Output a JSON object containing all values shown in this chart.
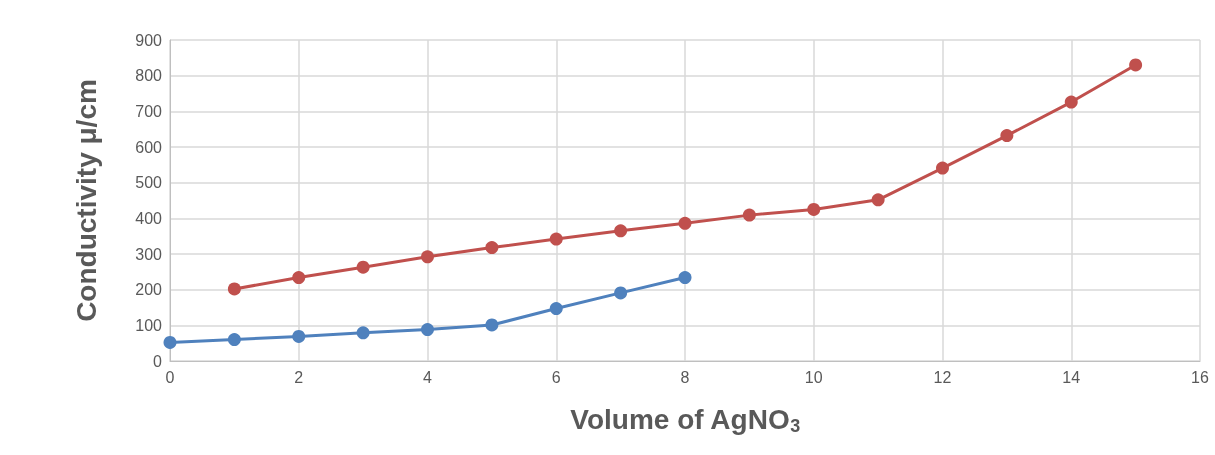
{
  "chart_data": {
    "type": "line",
    "xlabel": "Volume of AgNO$_{3}$",
    "ylabel": "Conductivity μ/cm",
    "xlim": [
      0,
      16
    ],
    "xticks": [
      0,
      2,
      4,
      6,
      8,
      10,
      12,
      14,
      16
    ],
    "ylim": [
      0,
      900
    ],
    "yticks": [
      0,
      100,
      200,
      300,
      400,
      500,
      600,
      700,
      800,
      900
    ],
    "grid": true,
    "marker": "circle",
    "line_style": "solid",
    "series": [
      {
        "color": "#4f81bd",
        "x": [
          0,
          1,
          2,
          3,
          4,
          5,
          6,
          7,
          8
        ],
        "values": [
          52,
          60,
          69,
          79,
          88,
          101,
          147,
          191,
          234
        ]
      },
      {
        "color": "#c0504d",
        "x": [
          1,
          2,
          3,
          4,
          5,
          6,
          7,
          8,
          9,
          10,
          11,
          12,
          13,
          14,
          15
        ],
        "values": [
          202,
          234,
          263,
          292,
          318,
          342,
          365,
          386,
          409,
          425,
          452,
          541,
          632,
          726,
          830
        ]
      }
    ]
  }
}
